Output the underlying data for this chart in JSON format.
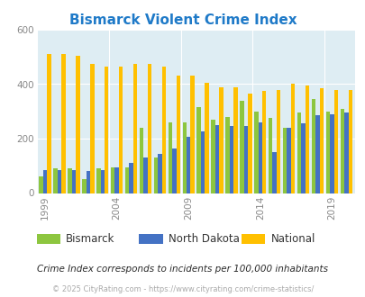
{
  "title": "Bismarck Violent Crime Index",
  "subtitle": "Crime Index corresponds to incidents per 100,000 inhabitants",
  "footer": "© 2025 CityRating.com - https://www.cityrating.com/crime-statistics/",
  "years": [
    1999,
    2000,
    2001,
    2002,
    2003,
    2004,
    2005,
    2006,
    2007,
    2008,
    2009,
    2010,
    2011,
    2012,
    2013,
    2014,
    2015,
    2016,
    2017,
    2018,
    2019,
    2020
  ],
  "bismarck": [
    60,
    90,
    90,
    50,
    90,
    95,
    95,
    240,
    130,
    260,
    260,
    315,
    270,
    280,
    340,
    300,
    275,
    240,
    295,
    345,
    300,
    310
  ],
  "north_dakota": [
    85,
    85,
    85,
    80,
    85,
    95,
    110,
    130,
    145,
    165,
    205,
    225,
    250,
    245,
    245,
    260,
    150,
    240,
    255,
    285,
    290,
    295
  ],
  "national": [
    510,
    510,
    505,
    475,
    465,
    465,
    475,
    475,
    465,
    430,
    430,
    405,
    390,
    390,
    365,
    375,
    380,
    400,
    395,
    385,
    380,
    380
  ],
  "bismarck_color": "#8dc63f",
  "north_dakota_color": "#4472c4",
  "national_color": "#ffc000",
  "bg_color": "#deedf3",
  "title_color": "#1f7ac8",
  "subtitle_color": "#2a2a2a",
  "footer_color": "#aaaaaa",
  "ytick_color": "#888888",
  "xtick_color": "#888888",
  "ylim": [
    0,
    600
  ],
  "yticks": [
    0,
    200,
    400,
    600
  ],
  "bar_width": 0.28,
  "legend_labels": [
    "Bismarck",
    "North Dakota",
    "National"
  ]
}
